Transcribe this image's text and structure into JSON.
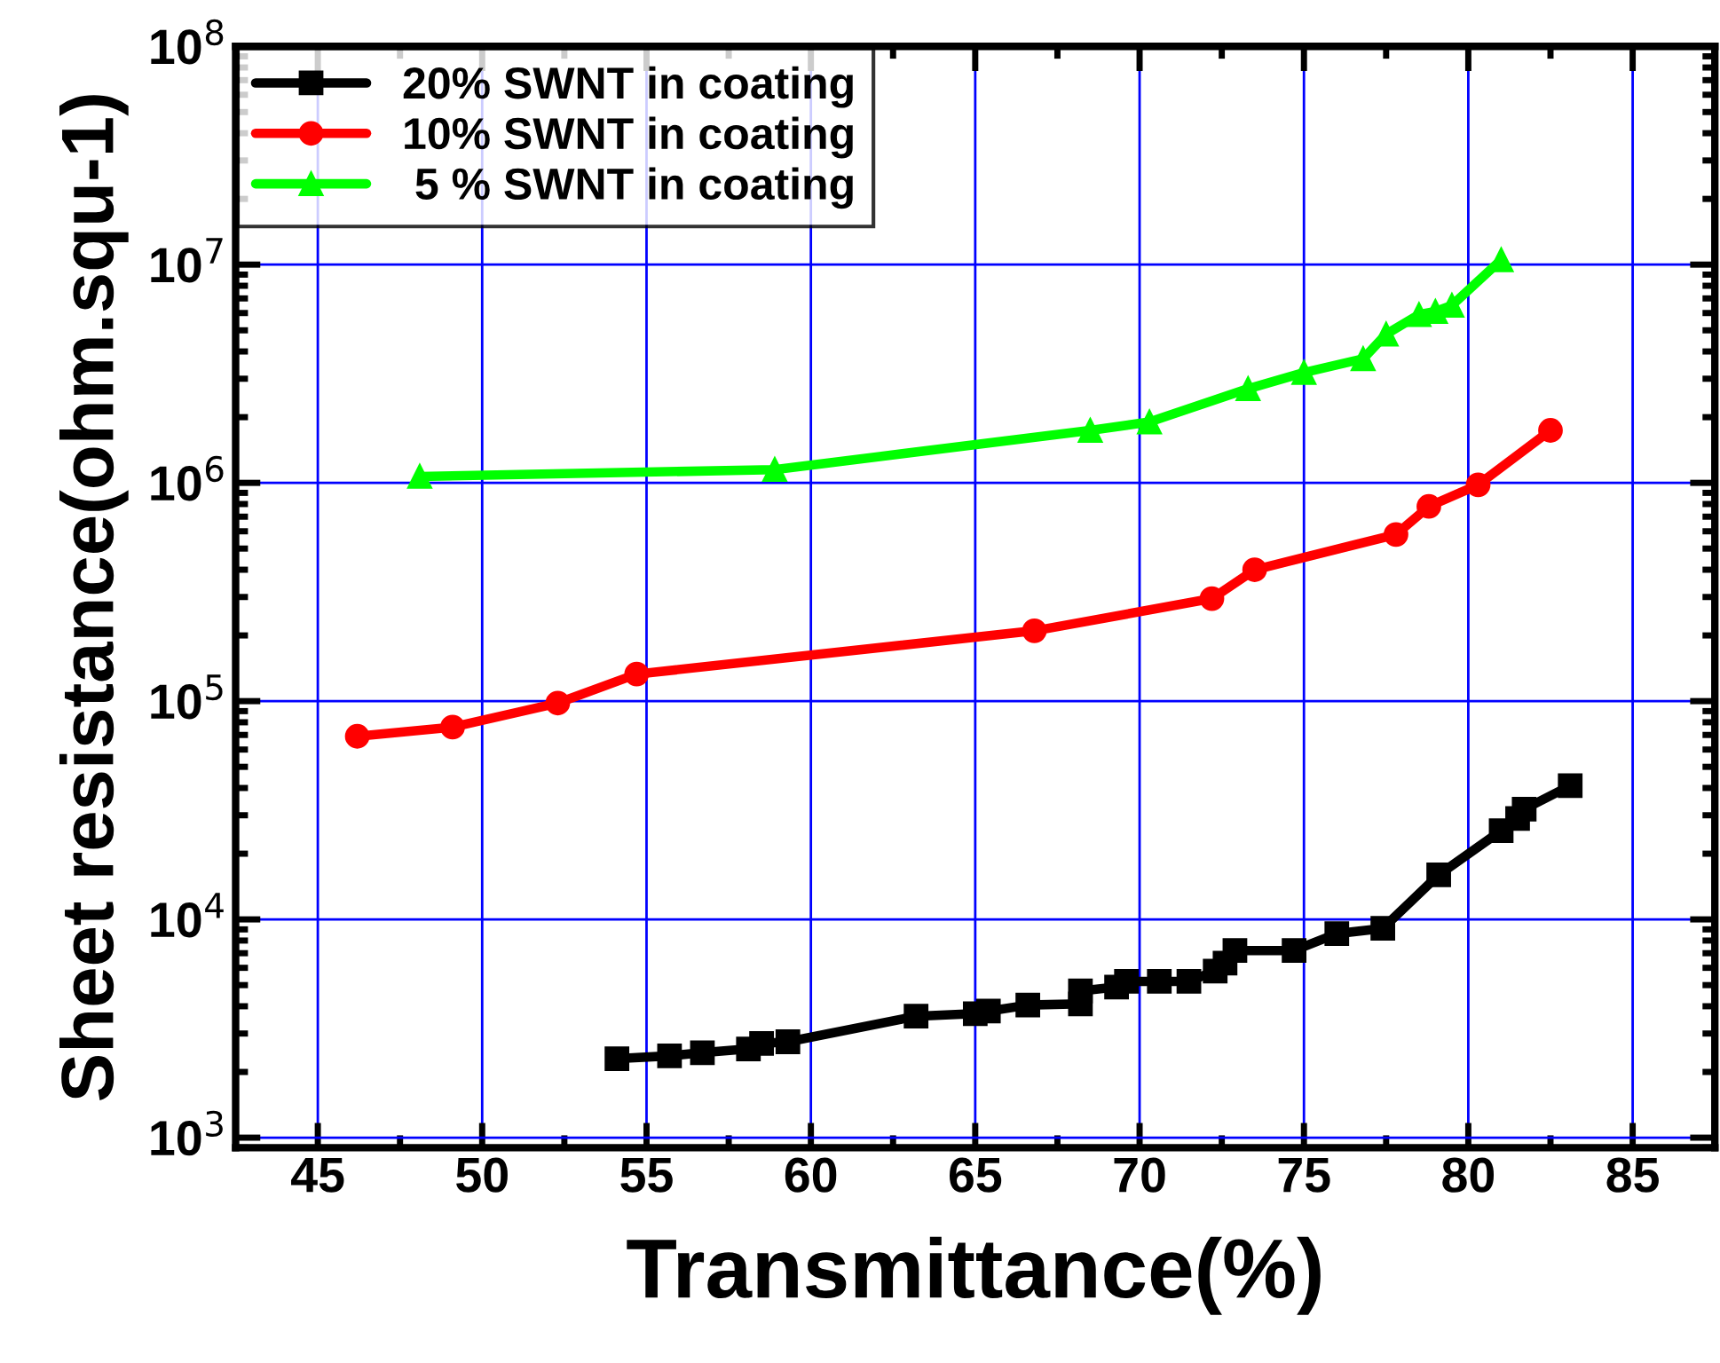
{
  "chart_data": {
    "type": "line",
    "xlabel": "Transmittance(%)",
    "ylabel": "Sheet resistance(ohm.squ-1)",
    "log": "y",
    "xlim": [
      42.5,
      87.5
    ],
    "xticks": [
      45,
      50,
      55,
      60,
      65,
      70,
      75,
      80,
      85
    ],
    "ylim": [
      900,
      100000000
    ],
    "yticks": [
      {
        "value": 1000,
        "label": "10$^{3}$"
      },
      {
        "value": 10000,
        "label": "10$^{4}$"
      },
      {
        "value": 100000,
        "label": "10$^{5}$"
      },
      {
        "value": 1000000,
        "label": "10$^{6}$"
      },
      {
        "value": 10000000,
        "label": "10$^{7}$"
      },
      {
        "value": 100000000,
        "label": "10$^{8}$"
      }
    ],
    "grid": true,
    "legend": "top left",
    "series": [
      {
        "name": "20% SWNT in coating",
        "color": "#000000",
        "marker": "square",
        "x": [
          54.1,
          55.7,
          56.7,
          58.1,
          58.5,
          59.3,
          63.2,
          65.0,
          65.4,
          66.6,
          68.2,
          68.2,
          69.3,
          69.6,
          70.6,
          71.5,
          72.3,
          72.6,
          72.9,
          74.7,
          76.0,
          77.4,
          79.1,
          81.0,
          81.5,
          81.7,
          83.1
        ],
        "values": [
          2300,
          2370,
          2450,
          2550,
          2700,
          2750,
          3600,
          3700,
          3800,
          4050,
          4100,
          4700,
          4900,
          5200,
          5200,
          5200,
          5800,
          6300,
          7200,
          7200,
          8600,
          9100,
          16000,
          25500,
          29000,
          32000,
          41000
        ]
      },
      {
        "name": "10% SWNT in coating",
        "color": "#ff0000",
        "marker": "circle",
        "x": [
          46.2,
          49.1,
          52.3,
          54.7,
          66.8,
          72.2,
          73.5,
          77.8,
          78.8,
          80.3,
          82.5
        ],
        "values": [
          69000,
          76000,
          98000,
          133000,
          210000,
          295000,
          400000,
          580000,
          780000,
          980000,
          1740000
        ]
      },
      {
        "name": " 5 % SWNT in coating",
        "color": "#00ff00",
        "marker": "triangle",
        "x": [
          48.1,
          58.9,
          68.5,
          70.3,
          73.3,
          75.0,
          76.8,
          77.5,
          78.5,
          79.0,
          79.5,
          81.0
        ],
        "values": [
          1070000,
          1150000,
          1740000,
          1900000,
          2700000,
          3200000,
          3700000,
          4800000,
          5900000,
          6100000,
          6500000,
          10500000
        ]
      }
    ]
  }
}
